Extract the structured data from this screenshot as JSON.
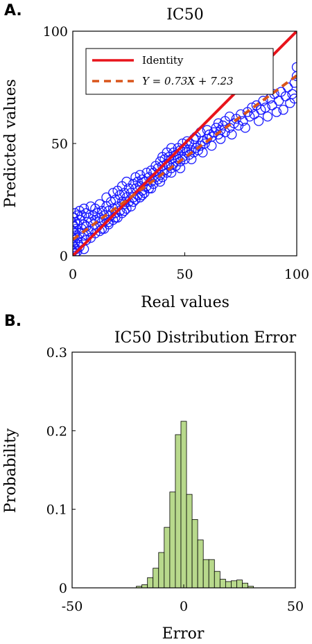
{
  "chart_data": [
    {
      "panel_label": "A.",
      "type": "scatter",
      "title": "IC50",
      "xlabel": "Real values",
      "ylabel": "Predicted values",
      "xlim": [
        0,
        100
      ],
      "ylim": [
        0,
        100
      ],
      "xticks": [
        "0",
        "50",
        "100"
      ],
      "yticks": [
        "0",
        "50",
        "100"
      ],
      "grid": false,
      "legend_placement": "top-left",
      "legend": [
        {
          "name": "Identity",
          "style": "solid",
          "color": "#e8141b"
        },
        {
          "name": "Y = 0.73X + 7.23",
          "style": "dashed",
          "color": "#d9541a"
        }
      ],
      "lines": [
        {
          "name": "Identity",
          "slope": 1,
          "intercept": 0
        },
        {
          "name": "Y = 0.73X + 7.23",
          "slope": 0.73,
          "intercept": 7.23
        }
      ],
      "marker_color": "#1a1aff",
      "points": [
        [
          0,
          2
        ],
        [
          0,
          5
        ],
        [
          0,
          8
        ],
        [
          0,
          11
        ],
        [
          0,
          14
        ],
        [
          0,
          17
        ],
        [
          0.5,
          4
        ],
        [
          0.5,
          9
        ],
        [
          0.5,
          13
        ],
        [
          1,
          1
        ],
        [
          1,
          6
        ],
        [
          1,
          10
        ],
        [
          1,
          15
        ],
        [
          1,
          19
        ],
        [
          1.5,
          3
        ],
        [
          1.5,
          12
        ],
        [
          2,
          2
        ],
        [
          2,
          8
        ],
        [
          2,
          14
        ],
        [
          2,
          18
        ],
        [
          2.5,
          5
        ],
        [
          3,
          4
        ],
        [
          3,
          10
        ],
        [
          3,
          16
        ],
        [
          3,
          20
        ],
        [
          4,
          6
        ],
        [
          4,
          12
        ],
        [
          4,
          18
        ],
        [
          5,
          3
        ],
        [
          5,
          9
        ],
        [
          5,
          14
        ],
        [
          5,
          21
        ],
        [
          6,
          7
        ],
        [
          6,
          13
        ],
        [
          6,
          19
        ],
        [
          7,
          11
        ],
        [
          7,
          17
        ],
        [
          8,
          8
        ],
        [
          8,
          15
        ],
        [
          8,
          22
        ],
        [
          9,
          12
        ],
        [
          9,
          18
        ],
        [
          10,
          10
        ],
        [
          10,
          16
        ],
        [
          10,
          21
        ],
        [
          11,
          13
        ],
        [
          11,
          19
        ],
        [
          12,
          11
        ],
        [
          12,
          17
        ],
        [
          12,
          23
        ],
        [
          13,
          15
        ],
        [
          13,
          20
        ],
        [
          14,
          12
        ],
        [
          14,
          18
        ],
        [
          15,
          16
        ],
        [
          15,
          22
        ],
        [
          15,
          26
        ],
        [
          16,
          14
        ],
        [
          16,
          20
        ],
        [
          17,
          18
        ],
        [
          17,
          24
        ],
        [
          18,
          16
        ],
        [
          18,
          21
        ],
        [
          18,
          28
        ],
        [
          19,
          19
        ],
        [
          19,
          25
        ],
        [
          20,
          17
        ],
        [
          20,
          22
        ],
        [
          20,
          29
        ],
        [
          21,
          20
        ],
        [
          21,
          27
        ],
        [
          22,
          19
        ],
        [
          22,
          24
        ],
        [
          22,
          31
        ],
        [
          23,
          23
        ],
        [
          23,
          28
        ],
        [
          24,
          21
        ],
        [
          24,
          26
        ],
        [
          24,
          33
        ],
        [
          25,
          24
        ],
        [
          25,
          30
        ],
        [
          26,
          22
        ],
        [
          26,
          28
        ],
        [
          27,
          26
        ],
        [
          27,
          32
        ],
        [
          28,
          25
        ],
        [
          28,
          30
        ],
        [
          28,
          35
        ],
        [
          29,
          27
        ],
        [
          29,
          33
        ],
        [
          30,
          26
        ],
        [
          30,
          31
        ],
        [
          30,
          36
        ],
        [
          31,
          29
        ],
        [
          31,
          34
        ],
        [
          32,
          28
        ],
        [
          32,
          33
        ],
        [
          33,
          31
        ],
        [
          33,
          37
        ],
        [
          34,
          30
        ],
        [
          34,
          35
        ],
        [
          35,
          33
        ],
        [
          35,
          38
        ],
        [
          36,
          32
        ],
        [
          36,
          37
        ],
        [
          37,
          35
        ],
        [
          37,
          40
        ],
        [
          38,
          34
        ],
        [
          38,
          39
        ],
        [
          39,
          36
        ],
        [
          39,
          42
        ],
        [
          40,
          35
        ],
        [
          40,
          40
        ],
        [
          40,
          44
        ],
        [
          41,
          38
        ],
        [
          41,
          43
        ],
        [
          42,
          37
        ],
        [
          42,
          41
        ],
        [
          42,
          46
        ],
        [
          43,
          40
        ],
        [
          43,
          44
        ],
        [
          44,
          39
        ],
        [
          44,
          43
        ],
        [
          44,
          48
        ],
        [
          45,
          41
        ],
        [
          45,
          46
        ],
        [
          46,
          40
        ],
        [
          46,
          45
        ],
        [
          47,
          43
        ],
        [
          47,
          48
        ],
        [
          48,
          42
        ],
        [
          48,
          47
        ],
        [
          49,
          44
        ],
        [
          49,
          50
        ],
        [
          50,
          43
        ],
        [
          50,
          48
        ],
        [
          51,
          46
        ],
        [
          51,
          51
        ],
        [
          52,
          45
        ],
        [
          52,
          50
        ],
        [
          53,
          47
        ],
        [
          54,
          46
        ],
        [
          54,
          52
        ],
        [
          55,
          48
        ],
        [
          55,
          53
        ],
        [
          56,
          47
        ],
        [
          57,
          49
        ],
        [
          57,
          55
        ],
        [
          58,
          51
        ],
        [
          59,
          50
        ],
        [
          60,
          52
        ],
        [
          60,
          56
        ],
        [
          61,
          54
        ],
        [
          62,
          53
        ],
        [
          63,
          55
        ],
        [
          64,
          57
        ],
        [
          65,
          54
        ],
        [
          65,
          59
        ],
        [
          66,
          56
        ],
        [
          67,
          58
        ],
        [
          68,
          55
        ],
        [
          68,
          60
        ],
        [
          70,
          57
        ],
        [
          70,
          62
        ],
        [
          72,
          59
        ],
        [
          73,
          61
        ],
        [
          74,
          58
        ],
        [
          75,
          63
        ],
        [
          76,
          60
        ],
        [
          78,
          64
        ],
        [
          79,
          62
        ],
        [
          80,
          66
        ],
        [
          81,
          63
        ],
        [
          82,
          67
        ],
        [
          84,
          65
        ],
        [
          85,
          69
        ],
        [
          86,
          66
        ],
        [
          88,
          70
        ],
        [
          89,
          67
        ],
        [
          90,
          72
        ],
        [
          92,
          69
        ],
        [
          93,
          73
        ],
        [
          95,
          71
        ],
        [
          96,
          75
        ],
        [
          98,
          72
        ],
        [
          99,
          77
        ],
        [
          100,
          80
        ],
        [
          100,
          84
        ],
        [
          99,
          70
        ],
        [
          97,
          68
        ],
        [
          94,
          65
        ],
        [
          91,
          64
        ],
        [
          87,
          62
        ],
        [
          83,
          60
        ],
        [
          77,
          57
        ],
        [
          71,
          54
        ],
        [
          66,
          52
        ],
        [
          62,
          49
        ],
        [
          58,
          46
        ],
        [
          53,
          43
        ],
        [
          48,
          39
        ],
        [
          44,
          37
        ],
        [
          39,
          33
        ],
        [
          35,
          30
        ],
        [
          31,
          27
        ],
        [
          27,
          24
        ],
        [
          23,
          20
        ],
        [
          19,
          17
        ],
        [
          16,
          15
        ],
        [
          13,
          12
        ]
      ]
    },
    {
      "panel_label": "B.",
      "type": "bar",
      "title": "IC50 Distribution Error",
      "xlabel": "Error",
      "ylabel": "Probability",
      "xlim": [
        -50,
        50
      ],
      "ylim": [
        0,
        0.3
      ],
      "xticks": [
        "-50",
        "0",
        "50"
      ],
      "yticks": [
        "0",
        "0.1",
        "0.2",
        "0.3"
      ],
      "grid": false,
      "bar_color": "#b8d98c",
      "bin_width": 2.5,
      "bins": [
        {
          "x": -20,
          "value": 0.002
        },
        {
          "x": -17.5,
          "value": 0.004
        },
        {
          "x": -15,
          "value": 0.013
        },
        {
          "x": -12.5,
          "value": 0.025
        },
        {
          "x": -10,
          "value": 0.045
        },
        {
          "x": -7.5,
          "value": 0.077
        },
        {
          "x": -5,
          "value": 0.122
        },
        {
          "x": -2.5,
          "value": 0.195
        },
        {
          "x": 0,
          "value": 0.212
        },
        {
          "x": 2.5,
          "value": 0.119
        },
        {
          "x": 5,
          "value": 0.087
        },
        {
          "x": 7.5,
          "value": 0.061
        },
        {
          "x": 10,
          "value": 0.036
        },
        {
          "x": 12.5,
          "value": 0.036
        },
        {
          "x": 15,
          "value": 0.021
        },
        {
          "x": 17.5,
          "value": 0.011
        },
        {
          "x": 20,
          "value": 0.008
        },
        {
          "x": 22.5,
          "value": 0.009
        },
        {
          "x": 25,
          "value": 0.01
        },
        {
          "x": 27.5,
          "value": 0.006
        },
        {
          "x": 30,
          "value": 0.002
        }
      ]
    }
  ]
}
